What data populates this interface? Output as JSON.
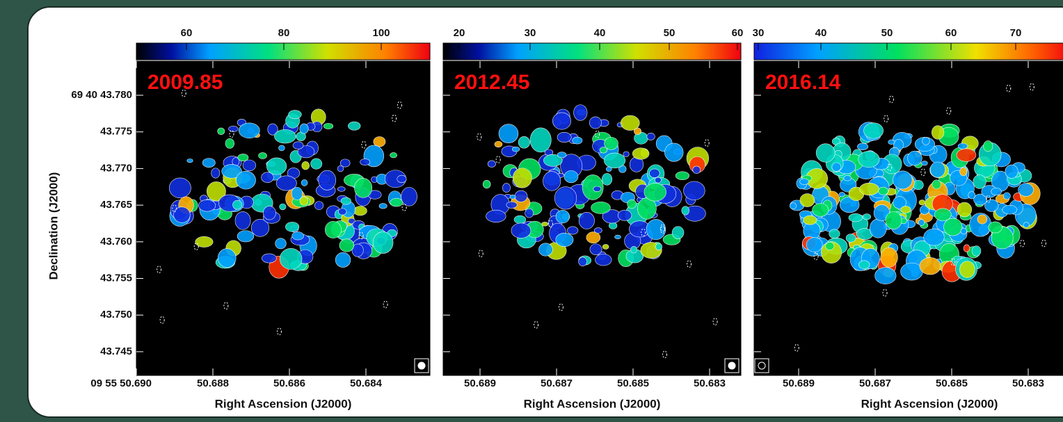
{
  "y_axis": {
    "label": "Declination (J2000)",
    "ticks": [
      "69 40 43.780",
      "43.775",
      "43.770",
      "43.765",
      "43.760",
      "43.755",
      "43.750",
      "43.745"
    ]
  },
  "panels": [
    {
      "epoch": "2009.85",
      "colorbar_ticks": [
        "60",
        "80",
        "100"
      ],
      "x_ticks": [
        "09 55 50.690",
        "50.688",
        "50.686",
        "50.684"
      ],
      "x_label": "Right Ascension (J2000)"
    },
    {
      "epoch": "2012.45",
      "colorbar_ticks": [
        "20",
        "30",
        "40",
        "50",
        "60"
      ],
      "x_ticks": [
        "50.689",
        "50.687",
        "50.685",
        "50.683"
      ],
      "x_label": "Right Ascension (J2000)"
    },
    {
      "epoch": "2016.14",
      "colorbar_ticks": [
        "30",
        "40",
        "50",
        "60",
        "70"
      ],
      "x_ticks": [
        "50.689",
        "50.687",
        "50.685",
        "50.683"
      ],
      "x_label": "Right Ascension (J2000)"
    }
  ]
}
